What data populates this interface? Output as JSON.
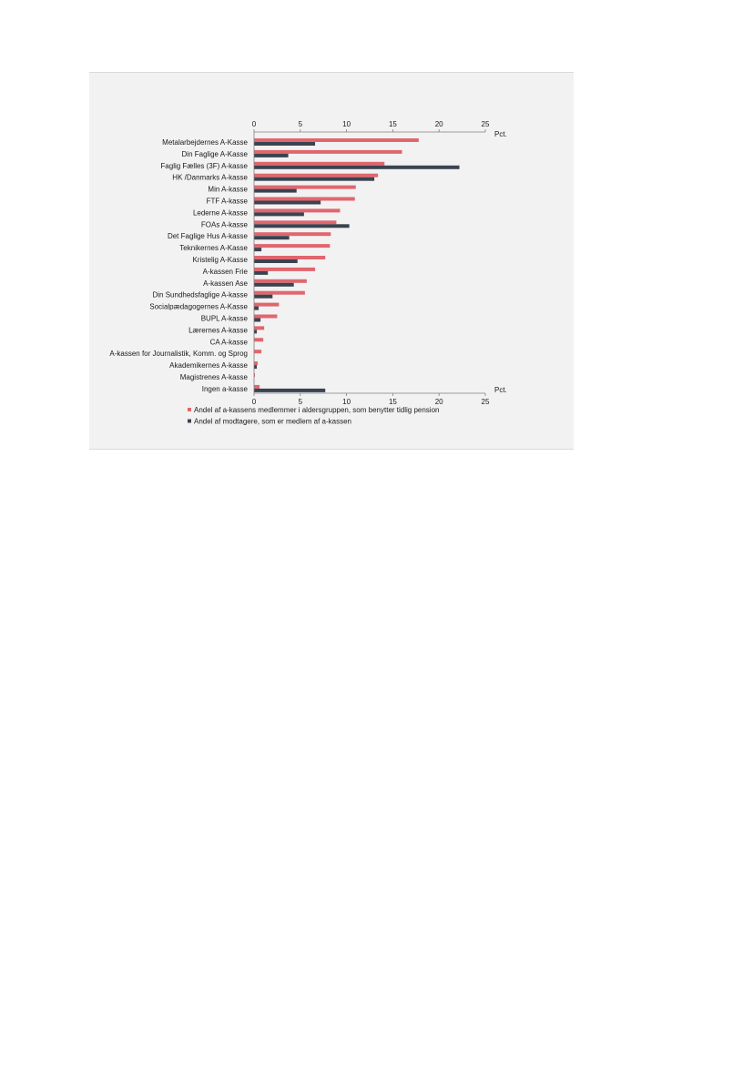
{
  "chart_data": {
    "type": "bar",
    "orientation": "horizontal",
    "unit_label": "Pct.",
    "xlim": [
      0,
      25
    ],
    "ticks": [
      "0",
      "5",
      "10",
      "15",
      "20",
      "25"
    ],
    "categories": [
      "Metalarbejdernes A-Kasse",
      "Din Faglige A-Kasse",
      "Faglig Fælles (3F) A-kasse",
      "HK /Danmarks A-kasse",
      "Min A-kasse",
      "FTF A-kasse",
      "Lederne A-kasse",
      "FOAs A-kasse",
      "Det Faglige Hus A-kasse",
      "Teknikernes A-Kasse",
      "Kristelig A-Kasse",
      "A-kassen Frie",
      "A-kassen Ase",
      "Din Sundhedsfaglige A-kasse",
      "Socialpædagogernes A-Kasse",
      "BUPL A-kasse",
      "Lærernes A-kasse",
      "CA A-kasse",
      "A-kassen for Journalistik, Komm. og Sprog",
      "Akademikernes A-kasse",
      "Magistrenes A-kasse",
      "Ingen a-kasse"
    ],
    "series": [
      {
        "name": "Andel af a-kassens medlemmer i aldersgruppen, som benytter tidlig pension",
        "color": "#e0666e",
        "values": [
          17.8,
          16.0,
          14.1,
          13.4,
          11.0,
          10.9,
          9.3,
          8.9,
          8.3,
          8.2,
          7.7,
          6.6,
          5.7,
          5.5,
          2.7,
          2.5,
          1.1,
          1.0,
          0.8,
          0.4,
          0.1,
          0.6
        ]
      },
      {
        "name": "Andel af modtagere, som er medlem af a-kassen",
        "color": "#3a4350",
        "values": [
          6.6,
          3.7,
          22.2,
          13.0,
          4.6,
          7.2,
          5.4,
          10.3,
          3.8,
          0.8,
          4.7,
          1.5,
          4.3,
          2.0,
          0.5,
          0.7,
          0.3,
          0.0,
          0.0,
          0.3,
          0.0,
          7.7
        ]
      }
    ],
    "legend_position": "bottom"
  }
}
